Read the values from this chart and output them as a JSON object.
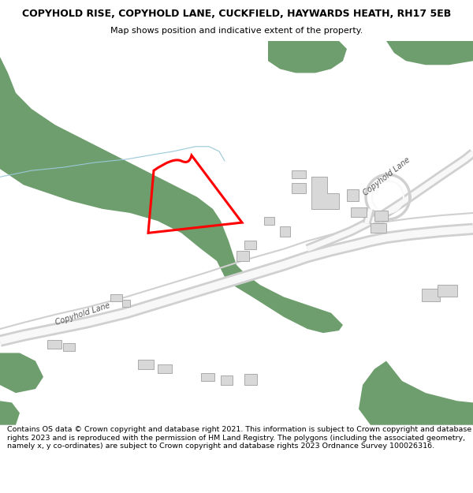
{
  "title_line1": "COPYHOLD RISE, COPYHOLD LANE, CUCKFIELD, HAYWARDS HEATH, RH17 5EB",
  "title_line2": "Map shows position and indicative extent of the property.",
  "footer_text": "Contains OS data © Crown copyright and database right 2021. This information is subject to Crown copyright and database rights 2023 and is reproduced with the permission of HM Land Registry. The polygons (including the associated geometry, namely x, y co-ordinates) are subject to Crown copyright and database rights 2023 Ordnance Survey 100026316.",
  "map_bg": "#ffffff",
  "title_fontsize": 9.0,
  "subtitle_fontsize": 8.0,
  "footer_fontsize": 6.8,
  "green_color": "#6e9e6e",
  "road_color": "#cccccc",
  "road_edge_color": "#bbbbbb",
  "building_fill": "#d8d8d8",
  "building_edge": "#aaaaaa",
  "stream_color": "#9ac8d8",
  "red_color": "#ff0000"
}
